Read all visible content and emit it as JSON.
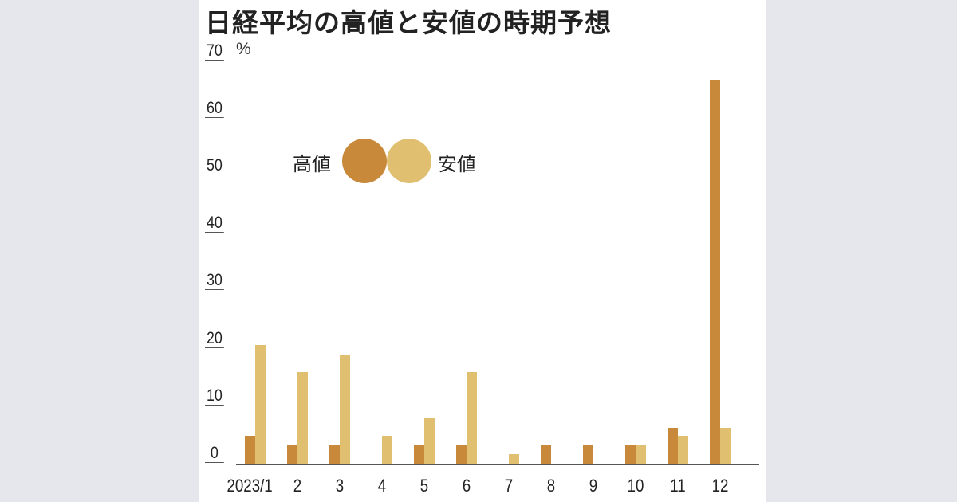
{
  "title": "日経平均の高値と安値の時期予想",
  "y_axis": {
    "unit": "%",
    "ticks": [
      "0",
      "10",
      "20",
      "30",
      "40",
      "50",
      "60",
      "70"
    ]
  },
  "legend": {
    "high_label": "高値",
    "low_label": "安値",
    "high_color": "#c8893a",
    "low_color": "#e0c070"
  },
  "x_labels": [
    "2023/1",
    "2",
    "3",
    "4",
    "5",
    "6",
    "7",
    "8",
    "9",
    "10",
    "11",
    "12"
  ],
  "chart_data": {
    "type": "bar",
    "title": "日経平均の高値と安値の時期予想",
    "xlabel": "",
    "ylabel": "%",
    "ylim": [
      0,
      70
    ],
    "grid": false,
    "legend_position": "inside-upper-left",
    "categories": [
      "2023/1",
      "2",
      "3",
      "4",
      "5",
      "6",
      "7",
      "8",
      "9",
      "10",
      "11",
      "12"
    ],
    "series": [
      {
        "name": "高値",
        "color": "#c8893a",
        "values": [
          4.8,
          3.2,
          3.2,
          0,
          3.2,
          3.2,
          0,
          3.2,
          3.2,
          3.2,
          6.3,
          66.7
        ]
      },
      {
        "name": "安値",
        "color": "#e0c070",
        "values": [
          20.6,
          15.9,
          19.0,
          4.8,
          7.9,
          15.9,
          1.6,
          0,
          0,
          3.2,
          4.8,
          6.3
        ]
      }
    ]
  }
}
